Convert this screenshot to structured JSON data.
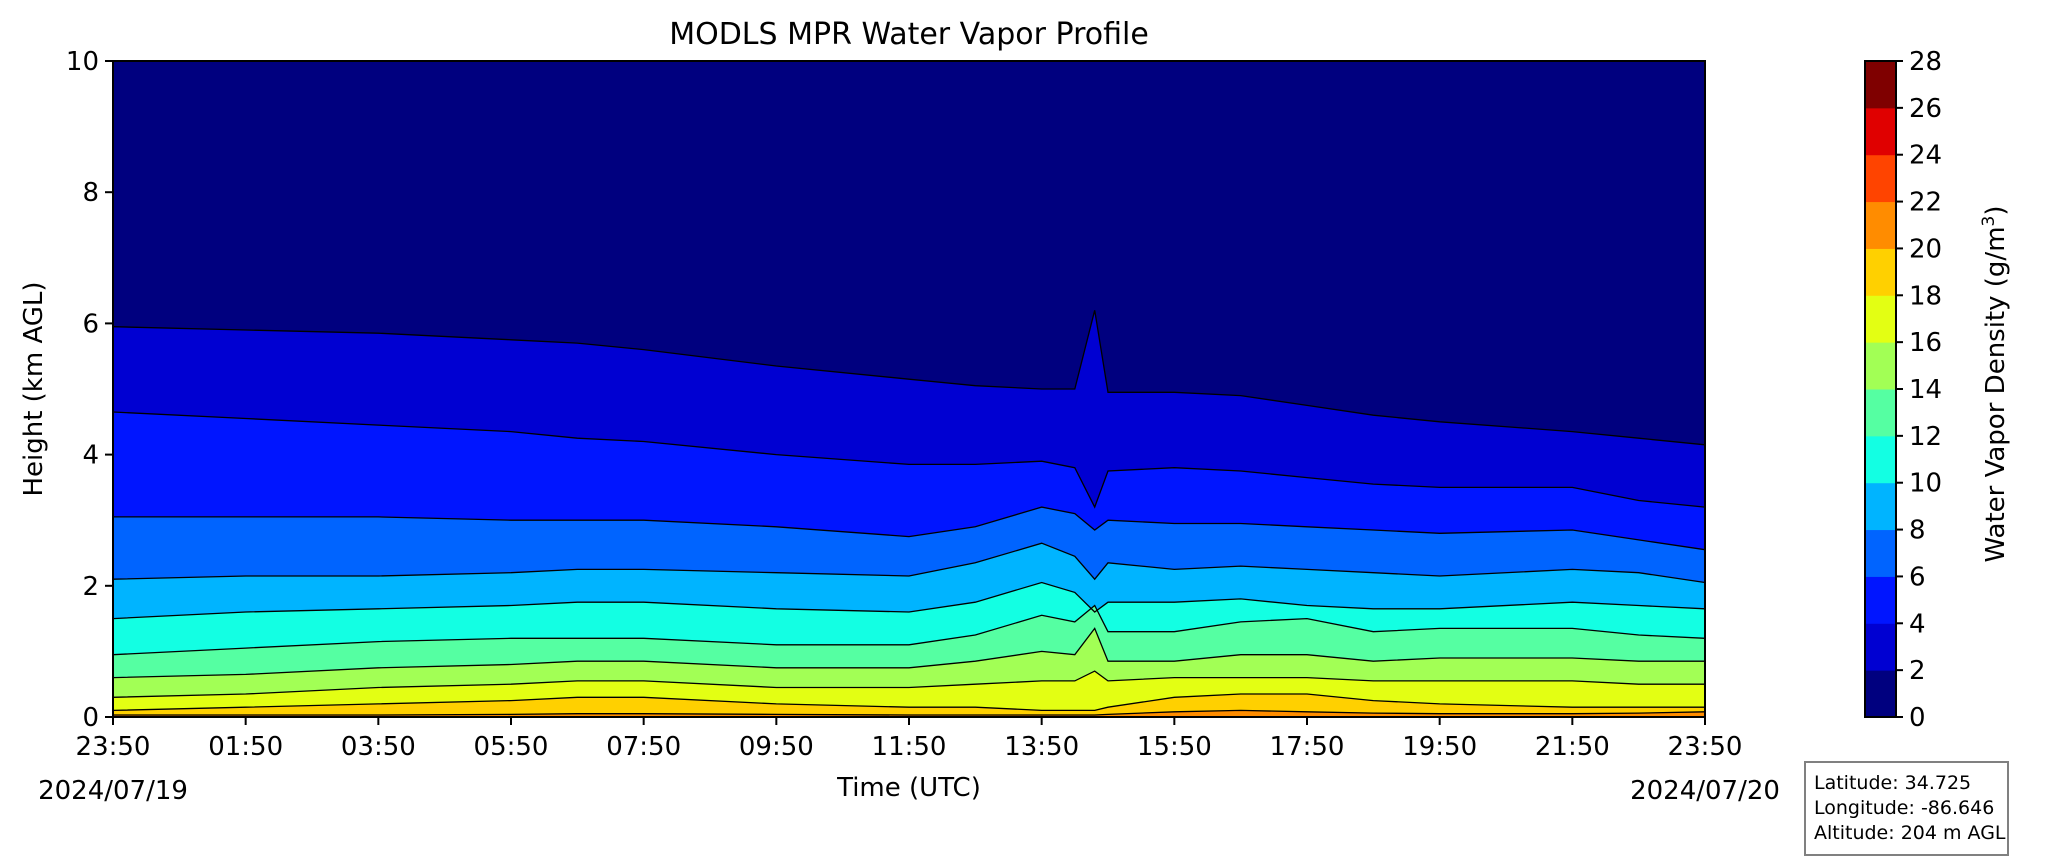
{
  "chart_data": {
    "type": "heatmap",
    "subtype": "filled-contour",
    "title": "MODLS MPR Water Vapor Profile",
    "xlabel": "Time (UTC)",
    "ylabel": "Height (km AGL)",
    "x_tick_labels": [
      "23:50",
      "01:50",
      "03:50",
      "05:50",
      "07:50",
      "09:50",
      "11:50",
      "13:50",
      "15:50",
      "17:50",
      "19:50",
      "21:50",
      "23:50"
    ],
    "x_start_date": "2024/07/19",
    "x_end_date": "2024/07/20",
    "y_ticks": [
      0,
      2,
      4,
      6,
      8,
      10
    ],
    "ylim": [
      0,
      10
    ],
    "colorbar": {
      "label_text": "Water Vapor Density (g/m",
      "label_superscript": "3",
      "label_close": ")",
      "levels": [
        0,
        2,
        4,
        6,
        8,
        10,
        12,
        14,
        16,
        18,
        20,
        22,
        24,
        26,
        28
      ],
      "colors": [
        "#00007f",
        "#0000d2",
        "#0015ff",
        "#0064ff",
        "#00b4ff",
        "#13ffe3",
        "#55ffa2",
        "#a2ff55",
        "#e3ff13",
        "#ffd000",
        "#ff8c00",
        "#ff4400",
        "#e00000",
        "#7f0000"
      ]
    },
    "contour_line_color": "#000000",
    "times_hours_from_start": [
      0,
      2,
      4,
      6,
      7,
      8,
      10,
      12,
      13,
      14,
      14.5,
      14.8,
      15,
      16,
      17,
      18,
      19,
      20,
      22,
      23,
      24
    ],
    "isoline_heights_km": {
      "2": [
        5.95,
        5.9,
        5.85,
        5.75,
        5.7,
        5.6,
        5.35,
        5.15,
        5.05,
        5.0,
        5.0,
        6.2,
        4.95,
        4.95,
        4.9,
        4.75,
        4.6,
        4.5,
        4.35,
        4.25,
        4.15
      ],
      "4": [
        4.65,
        4.55,
        4.45,
        4.35,
        4.25,
        4.2,
        4.0,
        3.85,
        3.85,
        3.9,
        3.8,
        3.2,
        3.75,
        3.8,
        3.75,
        3.65,
        3.55,
        3.5,
        3.5,
        3.3,
        3.2
      ],
      "6": [
        3.05,
        3.05,
        3.05,
        3.0,
        3.0,
        3.0,
        2.9,
        2.75,
        2.9,
        3.2,
        3.1,
        2.85,
        3.0,
        2.95,
        2.95,
        2.9,
        2.85,
        2.8,
        2.85,
        2.7,
        2.55
      ],
      "8": [
        2.1,
        2.15,
        2.15,
        2.2,
        2.25,
        2.25,
        2.2,
        2.15,
        2.35,
        2.65,
        2.45,
        2.1,
        2.35,
        2.25,
        2.3,
        2.25,
        2.2,
        2.15,
        2.25,
        2.2,
        2.05
      ],
      "10": [
        1.5,
        1.6,
        1.65,
        1.7,
        1.75,
        1.75,
        1.65,
        1.6,
        1.75,
        2.05,
        1.9,
        1.6,
        1.75,
        1.75,
        1.8,
        1.7,
        1.65,
        1.65,
        1.75,
        1.7,
        1.65
      ],
      "12": [
        0.95,
        1.05,
        1.15,
        1.2,
        1.2,
        1.2,
        1.1,
        1.1,
        1.25,
        1.55,
        1.45,
        1.7,
        1.3,
        1.3,
        1.45,
        1.5,
        1.3,
        1.35,
        1.35,
        1.25,
        1.2
      ],
      "14": [
        0.6,
        0.65,
        0.75,
        0.8,
        0.85,
        0.85,
        0.75,
        0.75,
        0.85,
        1.0,
        0.95,
        1.35,
        0.85,
        0.85,
        0.95,
        0.95,
        0.85,
        0.9,
        0.9,
        0.85,
        0.85
      ],
      "16": [
        0.3,
        0.35,
        0.45,
        0.5,
        0.55,
        0.55,
        0.45,
        0.45,
        0.5,
        0.55,
        0.55,
        0.7,
        0.55,
        0.6,
        0.6,
        0.6,
        0.55,
        0.55,
        0.55,
        0.5,
        0.5
      ],
      "18": [
        0.1,
        0.15,
        0.2,
        0.25,
        0.3,
        0.3,
        0.2,
        0.15,
        0.15,
        0.1,
        0.1,
        0.1,
        0.15,
        0.3,
        0.35,
        0.35,
        0.25,
        0.2,
        0.15,
        0.15,
        0.15
      ],
      "20": [
        0.03,
        0.03,
        0.03,
        0.04,
        0.05,
        0.05,
        0.04,
        0.03,
        0.03,
        0.03,
        0.03,
        0.03,
        0.04,
        0.08,
        0.1,
        0.08,
        0.06,
        0.05,
        0.05,
        0.06,
        0.08
      ]
    }
  },
  "info": {
    "latitude": "Latitude: 34.725",
    "longitude": "Longitude: -86.646",
    "altitude": "Altitude: 204 m AGL"
  }
}
